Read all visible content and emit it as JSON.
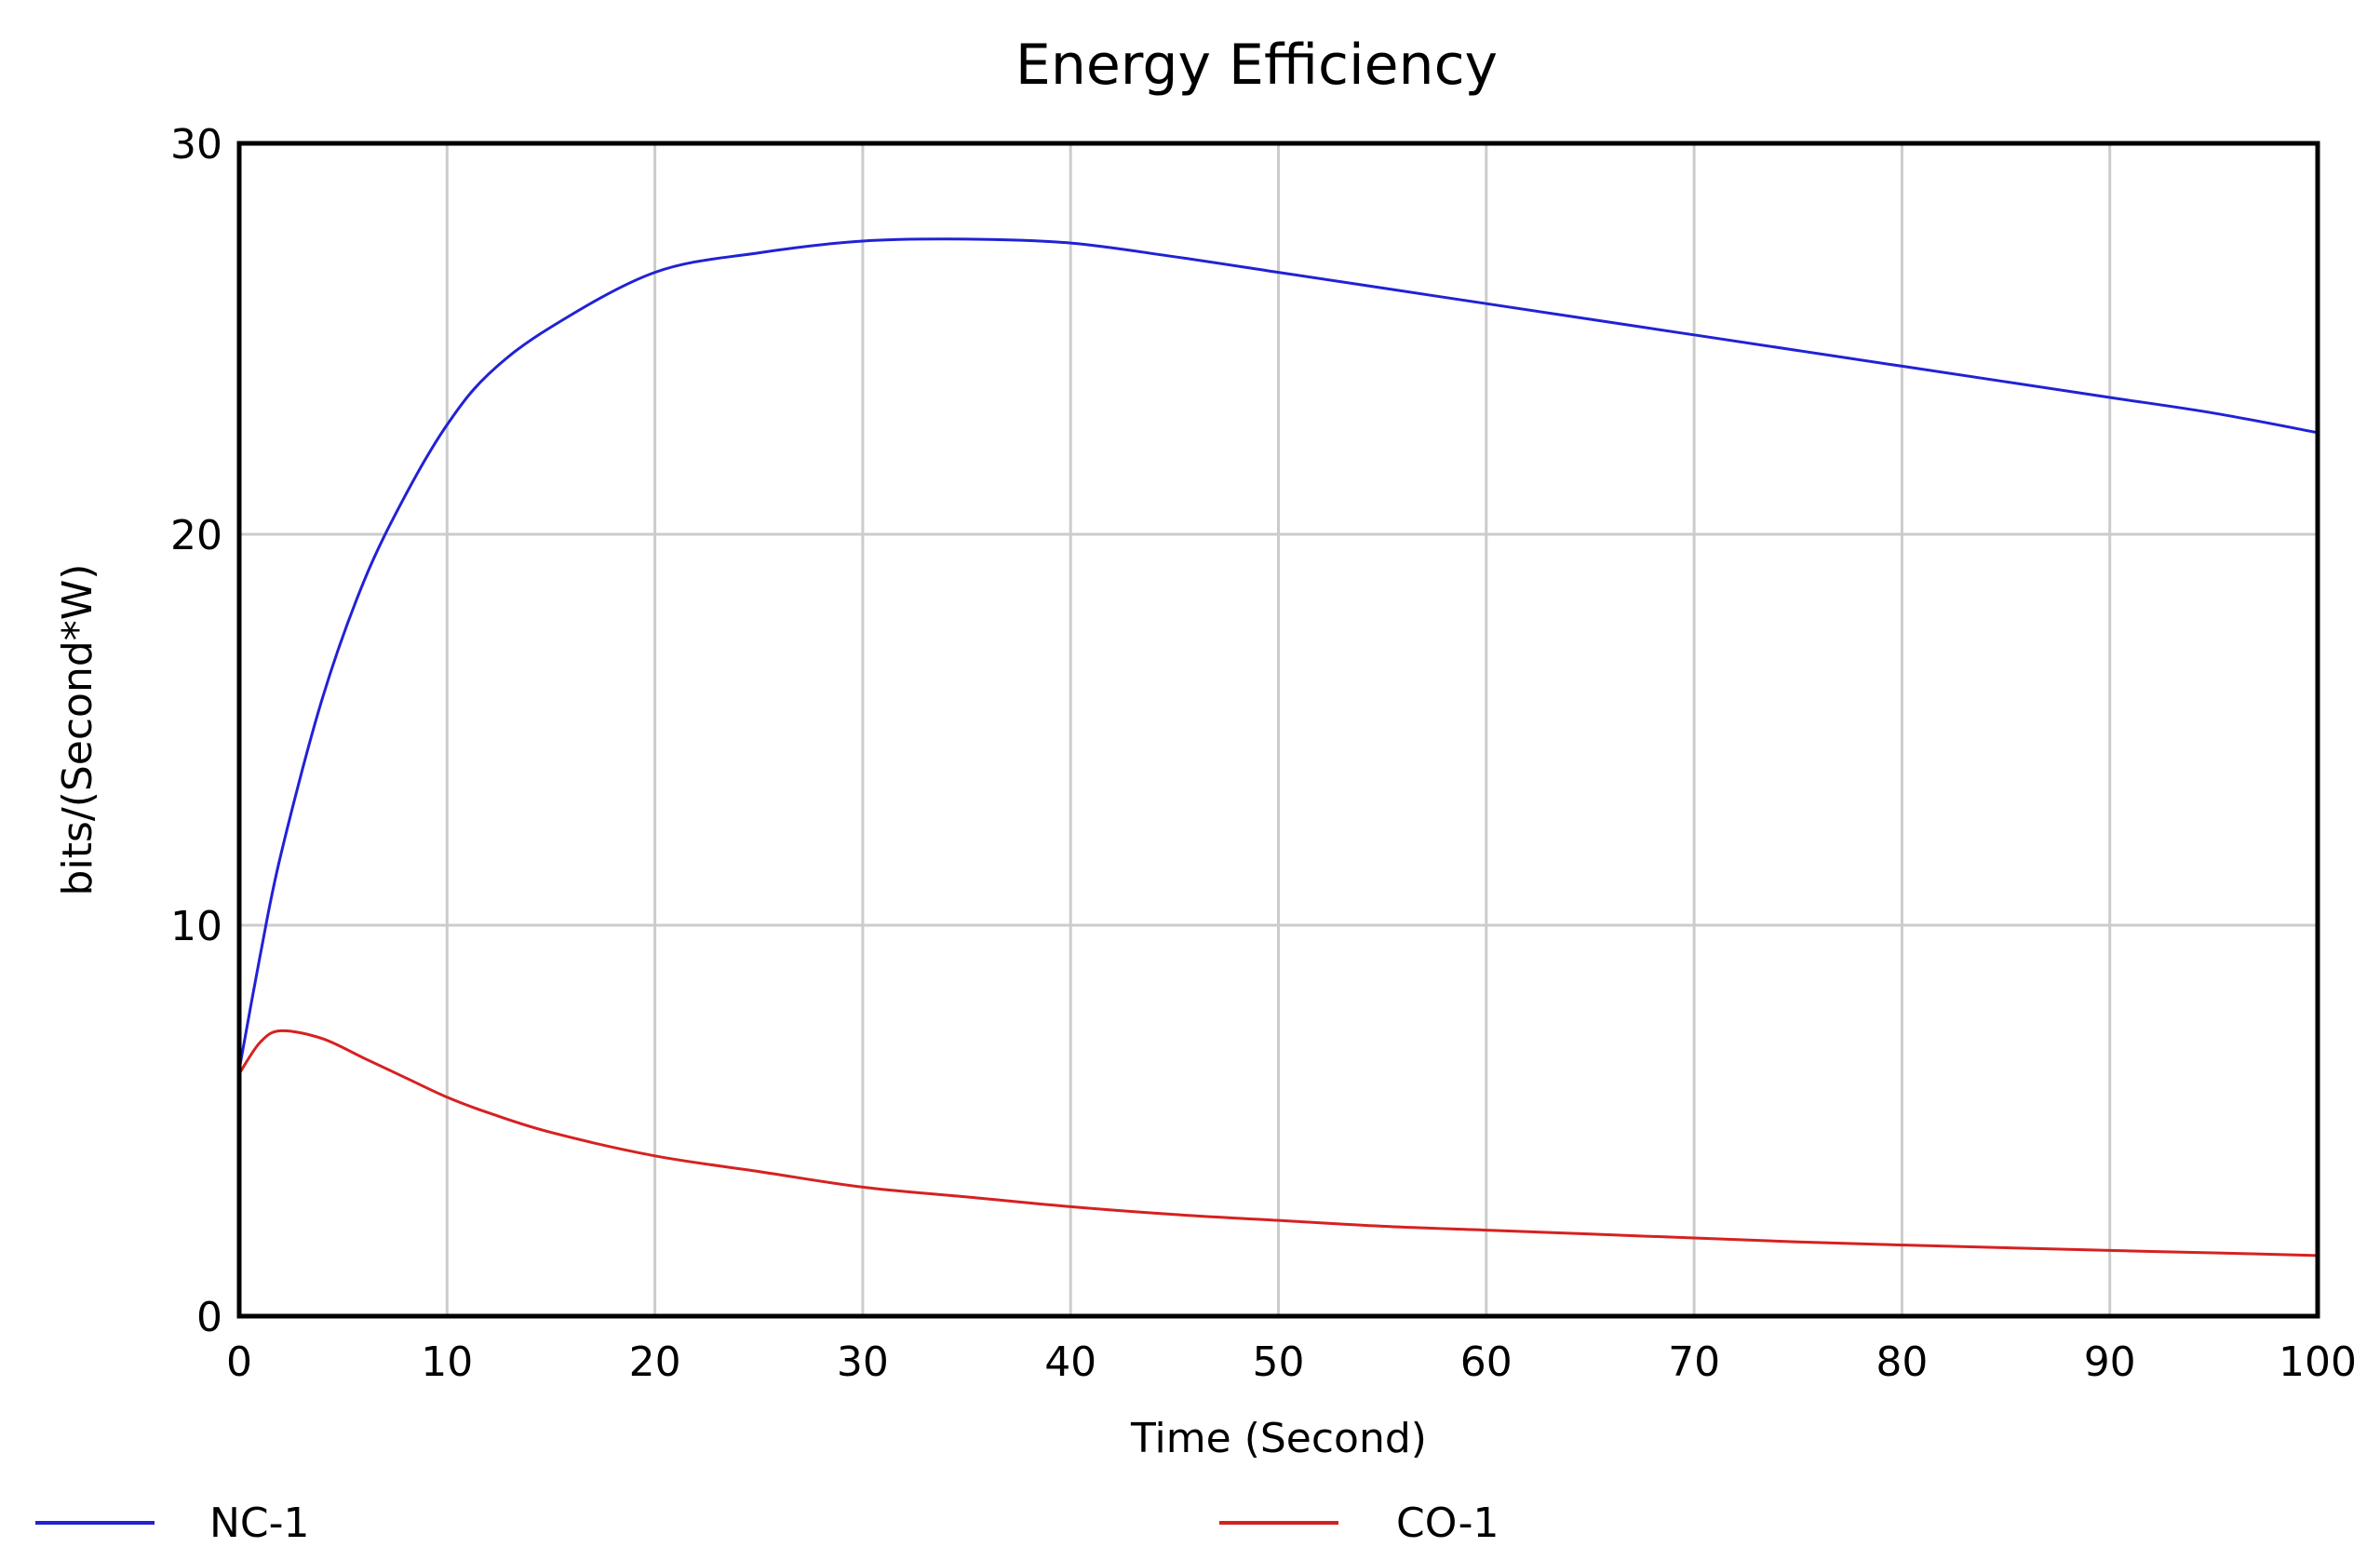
{
  "chart_data": {
    "type": "line",
    "title": "Energy Efficiency",
    "xlabel": "Time (Second)",
    "ylabel": "bits/(Second*W)",
    "xlim": [
      0,
      100
    ],
    "ylim": [
      0,
      30
    ],
    "x_ticks": [
      0,
      10,
      20,
      30,
      40,
      50,
      60,
      70,
      80,
      90,
      100
    ],
    "y_ticks": [
      0,
      10,
      20,
      30
    ],
    "grid": true,
    "legend_position": "bottom",
    "x": [
      0,
      1,
      2,
      4,
      6,
      8,
      10,
      12,
      15,
      20,
      25,
      30,
      35,
      40,
      45,
      50,
      55,
      60,
      65,
      70,
      75,
      80,
      85,
      90,
      95,
      100
    ],
    "series": [
      {
        "name": "NC-1",
        "color": "#2121d6",
        "values": [
          6.3,
          9.2,
          11.8,
          15.8,
          18.8,
          21.0,
          22.8,
          24.1,
          25.3,
          26.7,
          27.2,
          27.5,
          27.55,
          27.45,
          27.1,
          26.7,
          26.3,
          25.9,
          25.5,
          25.1,
          24.7,
          24.3,
          23.9,
          23.5,
          23.1,
          22.6
        ]
      },
      {
        "name": "CO-1",
        "color": "#d62121",
        "values": [
          6.2,
          7.0,
          7.3,
          7.1,
          6.6,
          6.1,
          5.6,
          5.2,
          4.7,
          4.1,
          3.7,
          3.3,
          3.05,
          2.8,
          2.6,
          2.45,
          2.3,
          2.2,
          2.1,
          2.0,
          1.9,
          1.82,
          1.75,
          1.68,
          1.62,
          1.55
        ]
      }
    ]
  }
}
